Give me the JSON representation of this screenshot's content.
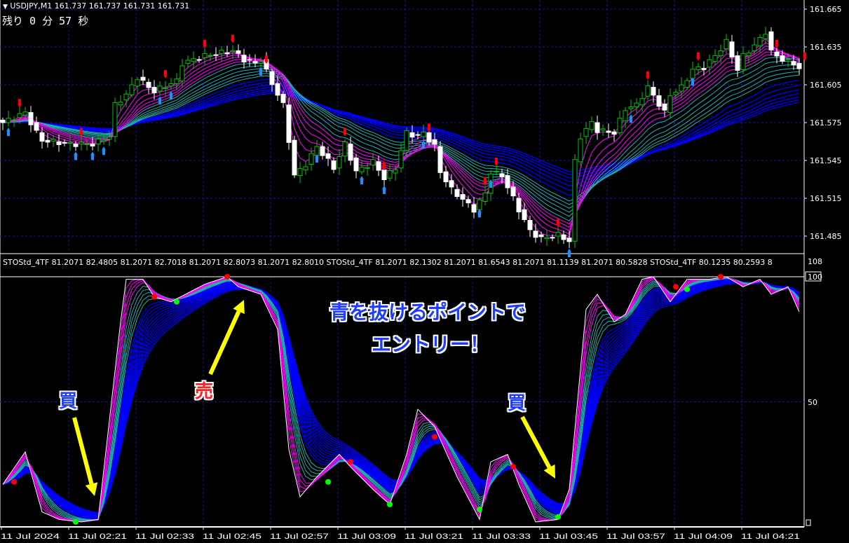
{
  "header": {
    "symbol_line": "USDJPY,M1  161.737 161.737 161.731 161.731",
    "countdown": "残り 0 分 57 秒"
  },
  "indicator_header": "STOStd_4TF 81.2071 82.4805 81.2071 82.7018 81.2071 82.8073 81.2071 82.8010  STOStd_4TF 81.2071 82.1302 81.2071 81.6543 81.2071 81.1139 81.2071 80.5828  STOStd_4TF 80.1235 80.2593 8",
  "annotations": {
    "buy1": "買",
    "sell": "売",
    "buy2": "買",
    "message_line1": "青を抜けるポイントで",
    "message_line2": "エントリー！"
  },
  "colors": {
    "background": "#000000",
    "grid": "#1a1a8c",
    "bull_candle": "#00c800",
    "bear_candle": "#ffffff",
    "ma_fast": "#ff00ff",
    "ma_mid": "#20b0b0",
    "ma_slow": "#0000ff",
    "signal_sell": "#ff0000",
    "signal_buy": "#00ff00",
    "annotation_arrow": "#ffff00",
    "message": "#1e3cff"
  },
  "chart_data": [
    {
      "type": "candlestick",
      "title": "USDJPY,M1",
      "y_ticks": [
        "161.665",
        "161.635",
        "161.605",
        "161.575",
        "161.545",
        "161.515",
        "161.485"
      ],
      "ylim": [
        161.47,
        161.67
      ],
      "x_ticks": [
        "11 Jul 2024",
        "11 Jul 02:21",
        "11 Jul 02:33",
        "11 Jul 02:45",
        "11 Jul 02:57",
        "11 Jul 03:09",
        "11 Jul 03:21",
        "11 Jul 03:33",
        "11 Jul 03:45",
        "11 Jul 03:57",
        "11 Jul 04:09",
        "11 Jul 04:21"
      ],
      "grid": true,
      "close_path": [
        [
          "02:09",
          161.575
        ],
        [
          "02:13",
          161.583
        ],
        [
          "02:15",
          161.567
        ],
        [
          "02:16",
          161.561
        ],
        [
          "02:21",
          161.558
        ],
        [
          "02:25",
          161.558
        ],
        [
          "02:28",
          161.564
        ],
        [
          "02:29",
          161.589
        ],
        [
          "02:31",
          161.597
        ],
        [
          "02:33",
          161.611
        ],
        [
          "02:35",
          161.603
        ],
        [
          "02:36",
          161.6
        ],
        [
          "02:40",
          161.608
        ],
        [
          "02:41",
          161.622
        ],
        [
          "02:45",
          161.628
        ],
        [
          "02:50",
          161.632
        ],
        [
          "02:52",
          161.625
        ],
        [
          "02:54",
          161.622
        ],
        [
          "02:55",
          161.625
        ],
        [
          "02:57",
          161.606
        ],
        [
          "02:59",
          161.589
        ],
        [
          "03:00",
          161.561
        ],
        [
          "03:01",
          161.533
        ],
        [
          "03:03",
          161.542
        ],
        [
          "03:05",
          161.556
        ],
        [
          "03:08",
          161.539
        ],
        [
          "03:10",
          161.558
        ],
        [
          "03:12",
          161.536
        ],
        [
          "03:15",
          161.544
        ],
        [
          "03:17",
          161.531
        ],
        [
          "03:19",
          161.539
        ],
        [
          "03:21",
          161.567
        ],
        [
          "03:23",
          161.564
        ],
        [
          "03:24",
          161.567
        ],
        [
          "03:26",
          161.556
        ],
        [
          "03:27",
          161.536
        ],
        [
          "03:29",
          161.522
        ],
        [
          "03:31",
          161.514
        ],
        [
          "03:33",
          161.506
        ],
        [
          "03:35",
          161.519
        ],
        [
          "03:36",
          161.536
        ],
        [
          "03:38",
          161.533
        ],
        [
          "03:41",
          161.506
        ],
        [
          "03:43",
          161.489
        ],
        [
          "03:45",
          161.483
        ],
        [
          "03:48",
          161.486
        ],
        [
          "03:50",
          161.481
        ],
        [
          "03:51",
          161.544
        ],
        [
          "03:52",
          161.564
        ],
        [
          "03:54",
          161.575
        ],
        [
          "03:55",
          161.569
        ],
        [
          "03:58",
          161.567
        ],
        [
          "04:00",
          161.586
        ],
        [
          "04:02",
          161.589
        ],
        [
          "04:04",
          161.603
        ],
        [
          "04:07",
          161.583
        ],
        [
          "04:08",
          161.597
        ],
        [
          "04:10",
          161.603
        ],
        [
          "04:12",
          161.617
        ],
        [
          "04:14",
          161.619
        ],
        [
          "04:16",
          161.628
        ],
        [
          "04:18",
          161.639
        ],
        [
          "04:20",
          161.617
        ],
        [
          "04:21",
          161.628
        ],
        [
          "04:23",
          161.636
        ],
        [
          "04:25",
          161.647
        ],
        [
          "04:26",
          161.631
        ],
        [
          "04:28",
          161.625
        ],
        [
          "04:30",
          161.622
        ],
        [
          "04:32",
          161.614
        ]
      ],
      "sell_arrows": [
        "02:12",
        "02:23",
        "02:38",
        "02:45",
        "02:50",
        "02:56",
        "03:10",
        "03:17",
        "03:25",
        "03:35",
        "03:37",
        "03:48",
        "04:04",
        "04:13",
        "04:27",
        "04:32"
      ],
      "buy_arrows": [
        "02:10",
        "02:22",
        "02:25",
        "02:27",
        "02:37",
        "02:39",
        "02:55",
        "03:05",
        "03:13",
        "03:17",
        "03:24",
        "03:34",
        "03:36",
        "03:50",
        "04:01",
        "04:12"
      ]
    },
    {
      "type": "line",
      "title": "STOStd_4TF",
      "y_ticks": [
        "108",
        "100",
        "50"
      ],
      "ylim": [
        0,
        100
      ],
      "main_line": [
        [
          "02:09",
          17
        ],
        [
          "02:13",
          30
        ],
        [
          "02:16",
          6
        ],
        [
          "02:19",
          3
        ],
        [
          "02:23",
          2
        ],
        [
          "02:26",
          3
        ],
        [
          "02:30",
          82
        ],
        [
          "02:31",
          99
        ],
        [
          "02:34",
          99
        ],
        [
          "02:36",
          92
        ],
        [
          "02:39",
          90
        ],
        [
          "02:45",
          97
        ],
        [
          "02:49",
          100
        ],
        [
          "02:51",
          96
        ],
        [
          "02:55",
          93
        ],
        [
          "02:58",
          79
        ],
        [
          "03:00",
          31
        ],
        [
          "03:02",
          12
        ],
        [
          "03:05",
          20
        ],
        [
          "03:09",
          29
        ],
        [
          "03:11",
          24
        ],
        [
          "03:15",
          15
        ],
        [
          "03:18",
          9
        ],
        [
          "03:21",
          29
        ],
        [
          "03:23",
          47
        ],
        [
          "03:26",
          40
        ],
        [
          "03:30",
          20
        ],
        [
          "03:34",
          3
        ],
        [
          "03:36",
          26
        ],
        [
          "03:39",
          29
        ],
        [
          "03:41",
          17
        ],
        [
          "03:44",
          2
        ],
        [
          "03:48",
          3
        ],
        [
          "03:50",
          15
        ],
        [
          "03:53",
          87
        ],
        [
          "03:55",
          93
        ],
        [
          "03:58",
          82
        ],
        [
          "04:00",
          85
        ],
        [
          "04:03",
          99
        ],
        [
          "04:05",
          100
        ],
        [
          "04:08",
          90
        ],
        [
          "04:11",
          99
        ],
        [
          "04:15",
          99
        ],
        [
          "04:18",
          100
        ],
        [
          "04:21",
          96
        ],
        [
          "04:24",
          99
        ],
        [
          "04:26",
          93
        ],
        [
          "04:29",
          96
        ],
        [
          "04:31",
          86
        ]
      ],
      "sell_dots": [
        [
          "02:11",
          18
        ],
        [
          "02:36",
          92
        ],
        [
          "02:49",
          100
        ],
        [
          "03:11",
          26
        ],
        [
          "03:26",
          36
        ],
        [
          "03:40",
          24
        ],
        [
          "04:09",
          96
        ],
        [
          "04:17",
          100
        ]
      ],
      "buy_dots": [
        [
          "02:22",
          2
        ],
        [
          "02:40",
          90
        ],
        [
          "03:07",
          18
        ],
        [
          "03:18",
          9
        ],
        [
          "03:34",
          7
        ],
        [
          "03:48",
          4
        ],
        [
          "04:11",
          95
        ]
      ]
    }
  ]
}
